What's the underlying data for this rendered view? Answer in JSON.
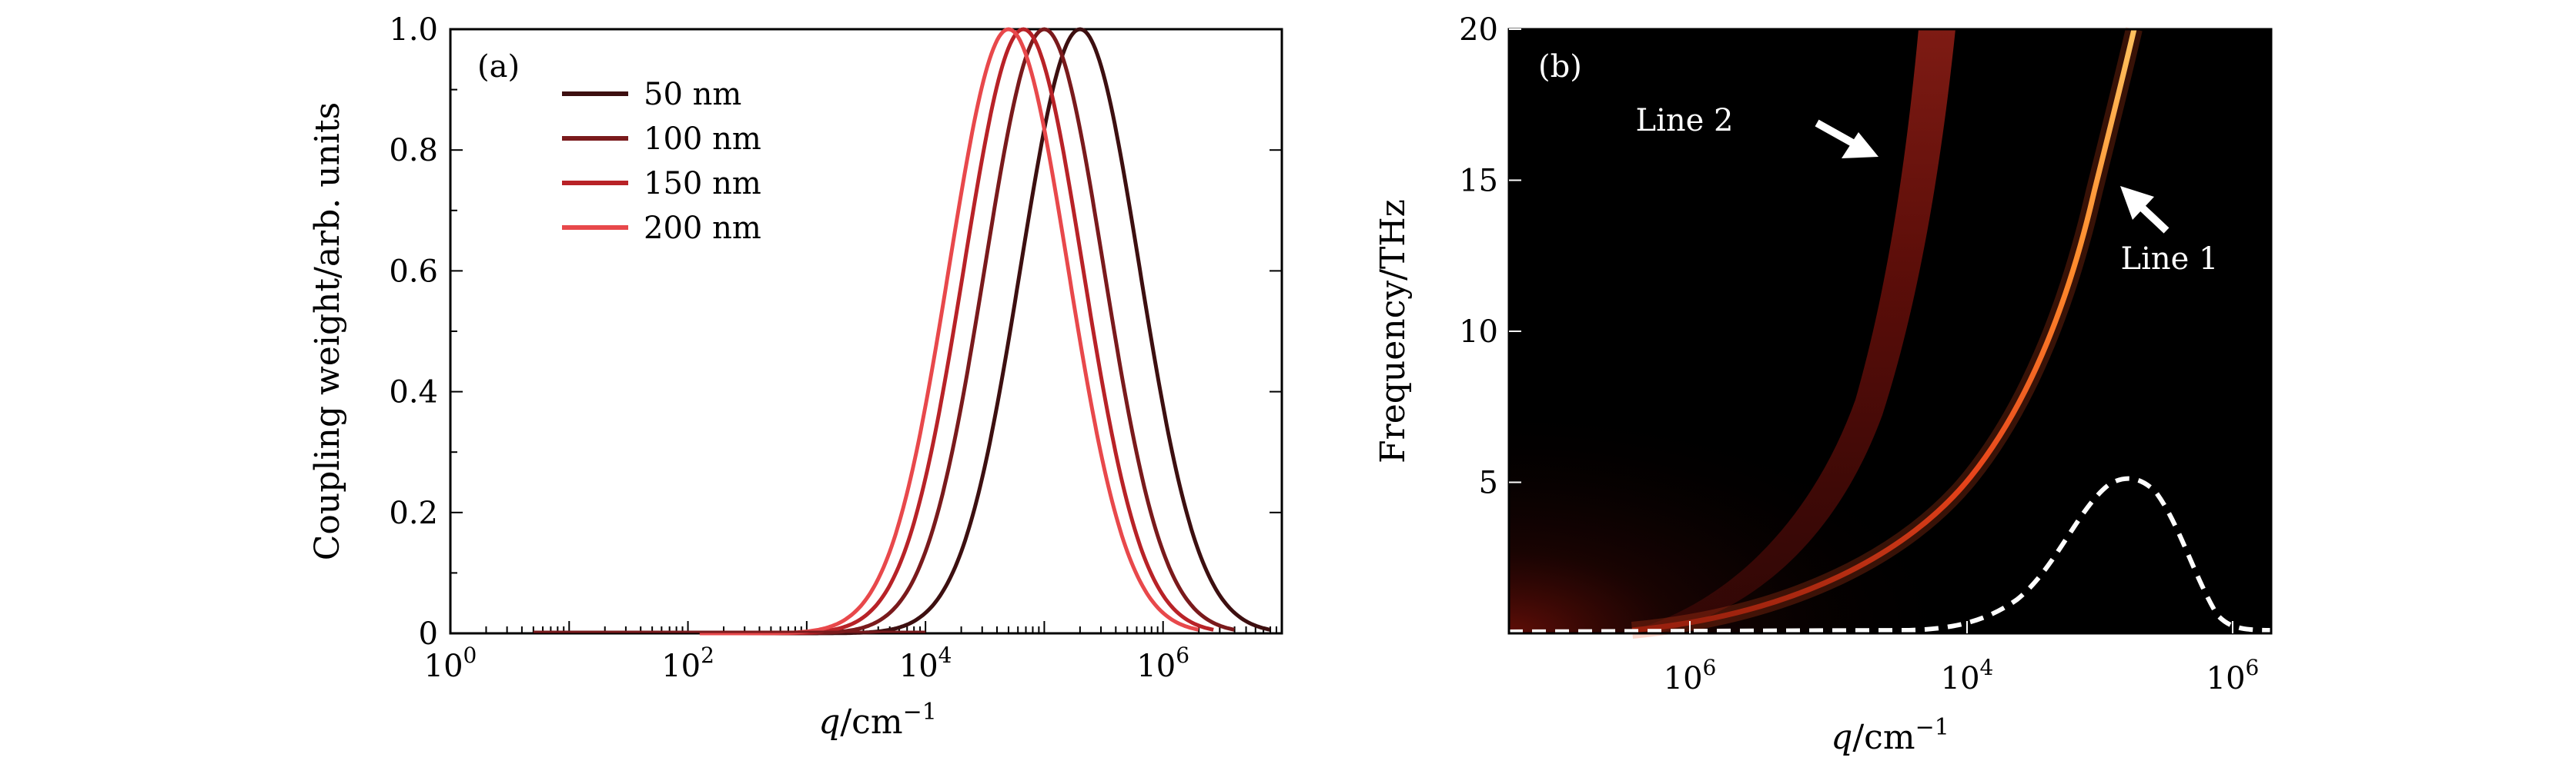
{
  "chart_data": [
    {
      "panel": "(a)",
      "type": "line",
      "ylabel": "Coupling weight/arb. units",
      "xlabel_var": "q",
      "xlabel_unit": "/cm",
      "xlabel_exp": "−1",
      "xscale": "log",
      "xlim": [
        1,
        10000000
      ],
      "ylim": [
        0,
        1
      ],
      "x_ticks": [
        {
          "value": 1,
          "base": "10",
          "exp": "0"
        },
        {
          "value": 100,
          "base": "10",
          "exp": "2"
        },
        {
          "value": 10000,
          "base": "10",
          "exp": "4"
        },
        {
          "value": 1000000,
          "base": "10",
          "exp": "6"
        }
      ],
      "y_ticks": [
        {
          "value": 0,
          "label": "0"
        },
        {
          "value": 0.2,
          "label": "0.2"
        },
        {
          "value": 0.4,
          "label": "0.4"
        },
        {
          "value": 0.6,
          "label": "0.6"
        },
        {
          "value": 0.8,
          "label": "0.8"
        },
        {
          "value": 1.0,
          "label": "1.0"
        }
      ],
      "legend_position": "top-left",
      "series": [
        {
          "name": "50 nm",
          "color": "#3d0f10",
          "peak_q": 200000,
          "log_width": 0.5
        },
        {
          "name": "100 nm",
          "color": "#7a1a1c",
          "peak_q": 100000,
          "log_width": 0.5
        },
        {
          "name": "150 nm",
          "color": "#b82227",
          "peak_q": 66700,
          "log_width": 0.5
        },
        {
          "name": "200 nm",
          "color": "#e8484b",
          "peak_q": 50000,
          "log_width": 0.5
        }
      ]
    },
    {
      "panel": "(b)",
      "type": "heatmap",
      "ylabel": "Frequency/THz",
      "xlabel_var": "q",
      "xlabel_unit": "/cm",
      "xlabel_exp": "−1",
      "ylim": [
        0,
        20
      ],
      "x_ticks": [
        {
          "value": 1000000,
          "base": "10",
          "exp": "6"
        },
        {
          "value": 10000,
          "base": "10",
          "exp": "4"
        },
        {
          "value": 1000000,
          "base": "10",
          "exp": "6"
        }
      ],
      "y_ticks": [
        {
          "value": 5,
          "label": "5"
        },
        {
          "value": 10,
          "label": "10"
        },
        {
          "value": 15,
          "label": "15"
        },
        {
          "value": 20,
          "label": "20"
        }
      ],
      "annotations": [
        "Line 2",
        "Line 1"
      ],
      "background_color": "#000000",
      "line1_color": "#ffd040",
      "line2_color": "#8a1410",
      "dashed_color": "#ffffff"
    }
  ]
}
